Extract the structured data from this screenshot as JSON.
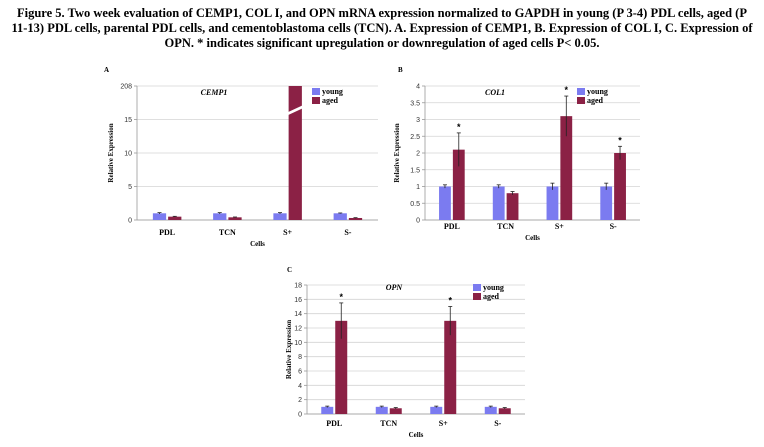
{
  "caption": "Figure 5. Two week evaluation of CEMP1, COL I, and OPN mRNA expression normalized to GAPDH in young (P 3-4) PDL cells, aged (P 11-13) PDL cells, parental PDL cells, and cementoblastoma cells (TCN). A. Expression of CEMP1, B. Expression of COL I, C. Expression of OPN. * indicates significant upregulation or downregulation of aged cells P< 0.05.",
  "colors": {
    "young": "#7b7bf0",
    "aged": "#8b2145",
    "grid": "#d4d4d4",
    "axis": "#999999"
  },
  "chart_data": [
    {
      "panel": "A",
      "type": "bar",
      "title": "CEMP1",
      "xlabel": "Cells",
      "ylabel": "Relative Expression",
      "categories": [
        "PDL",
        "TCN",
        "S+",
        "S-"
      ],
      "series": [
        {
          "name": "young",
          "values": [
            1,
            1,
            1,
            1
          ],
          "errors": [
            0.1,
            0.1,
            0.1,
            0.05
          ]
        },
        {
          "name": "aged",
          "values": [
            0.5,
            0.4,
            208,
            0.3
          ],
          "errors": [
            0.05,
            0.05,
            0,
            0.05
          ]
        }
      ],
      "yticks": [
        "0",
        "5",
        "10",
        "15",
        "208"
      ],
      "ylim": [
        0,
        20
      ],
      "axis_break": true,
      "significance": [],
      "legend": "top-right"
    },
    {
      "panel": "B",
      "type": "bar",
      "title": "COL1",
      "xlabel": "Cells",
      "ylabel": "Relative Expression",
      "categories": [
        "PDL",
        "TCN",
        "S+",
        "S-"
      ],
      "series": [
        {
          "name": "young",
          "values": [
            1,
            1,
            1,
            1
          ],
          "errors": [
            0.05,
            0.05,
            0.1,
            0.1
          ]
        },
        {
          "name": "aged",
          "values": [
            2.1,
            0.8,
            3.1,
            2.0
          ],
          "errors": [
            0.5,
            0.05,
            0.6,
            0.2
          ]
        }
      ],
      "yticks": [
        "0",
        "0.5",
        "1",
        "1.5",
        "2",
        "2.5",
        "3",
        "3.5",
        "4"
      ],
      "ylim": [
        0,
        4
      ],
      "axis_break": false,
      "significance": [
        "PDL",
        "S+",
        "S-"
      ],
      "legend": "top-right"
    },
    {
      "panel": "C",
      "type": "bar",
      "title": "OPN",
      "xlabel": "Cells",
      "ylabel": "Relative Expression",
      "categories": [
        "PDL",
        "TCN",
        "S+",
        "S-"
      ],
      "series": [
        {
          "name": "young",
          "values": [
            1,
            1,
            1,
            1
          ],
          "errors": [
            0.1,
            0.1,
            0.1,
            0.1
          ]
        },
        {
          "name": "aged",
          "values": [
            13,
            0.8,
            13,
            0.8
          ],
          "errors": [
            2.5,
            0.1,
            2.0,
            0.1
          ]
        }
      ],
      "yticks": [
        "0",
        "2",
        "4",
        "6",
        "8",
        "10",
        "12",
        "14",
        "16",
        "18"
      ],
      "ylim": [
        0,
        18
      ],
      "axis_break": false,
      "significance": [
        "PDL",
        "S+"
      ],
      "legend": "top-right"
    }
  ]
}
